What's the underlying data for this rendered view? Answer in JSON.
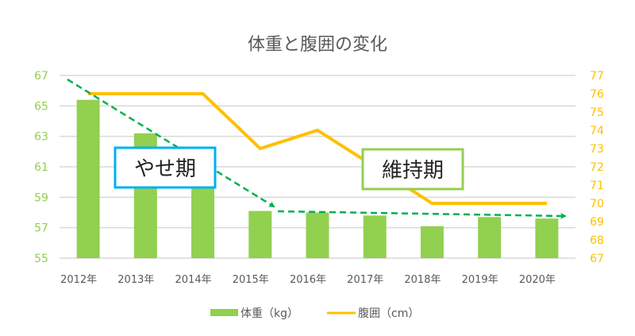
{
  "chart_data": {
    "type": "bar+line",
    "title": "体重と腹囲の変化",
    "categories": [
      "2012年",
      "2013年",
      "2014年",
      "2015年",
      "2016年",
      "2017年",
      "2018年",
      "2019年",
      "2020年"
    ],
    "series": [
      {
        "name": "体重（kg）",
        "type": "bar",
        "axis": "left",
        "color": "#92d050",
        "values": [
          65.4,
          63.2,
          60.8,
          58.1,
          58.0,
          57.8,
          57.1,
          57.7,
          57.6
        ]
      },
      {
        "name": "腹囲（cm）",
        "type": "line",
        "axis": "right",
        "color": "#ffc000",
        "values": [
          76,
          76,
          76,
          73,
          74,
          72,
          70,
          70,
          70
        ]
      }
    ],
    "left_axis": {
      "ylim": [
        55,
        67
      ],
      "ticks": [
        "55",
        "57",
        "59",
        "61",
        "63",
        "65",
        "67"
      ],
      "color": "#92d050"
    },
    "right_axis": {
      "ylim": [
        67,
        77
      ],
      "ticks": [
        "67",
        "68",
        "69",
        "70",
        "71",
        "72",
        "73",
        "74",
        "75",
        "76",
        "77"
      ],
      "color": "#ffc000"
    },
    "grid": true,
    "legend": "bottom",
    "annotations": [
      {
        "text": "やせ期",
        "border_color": "#00b0f0"
      },
      {
        "text": "維持期",
        "border_color": "#92d050"
      }
    ],
    "arrow_color": "#00b050"
  }
}
